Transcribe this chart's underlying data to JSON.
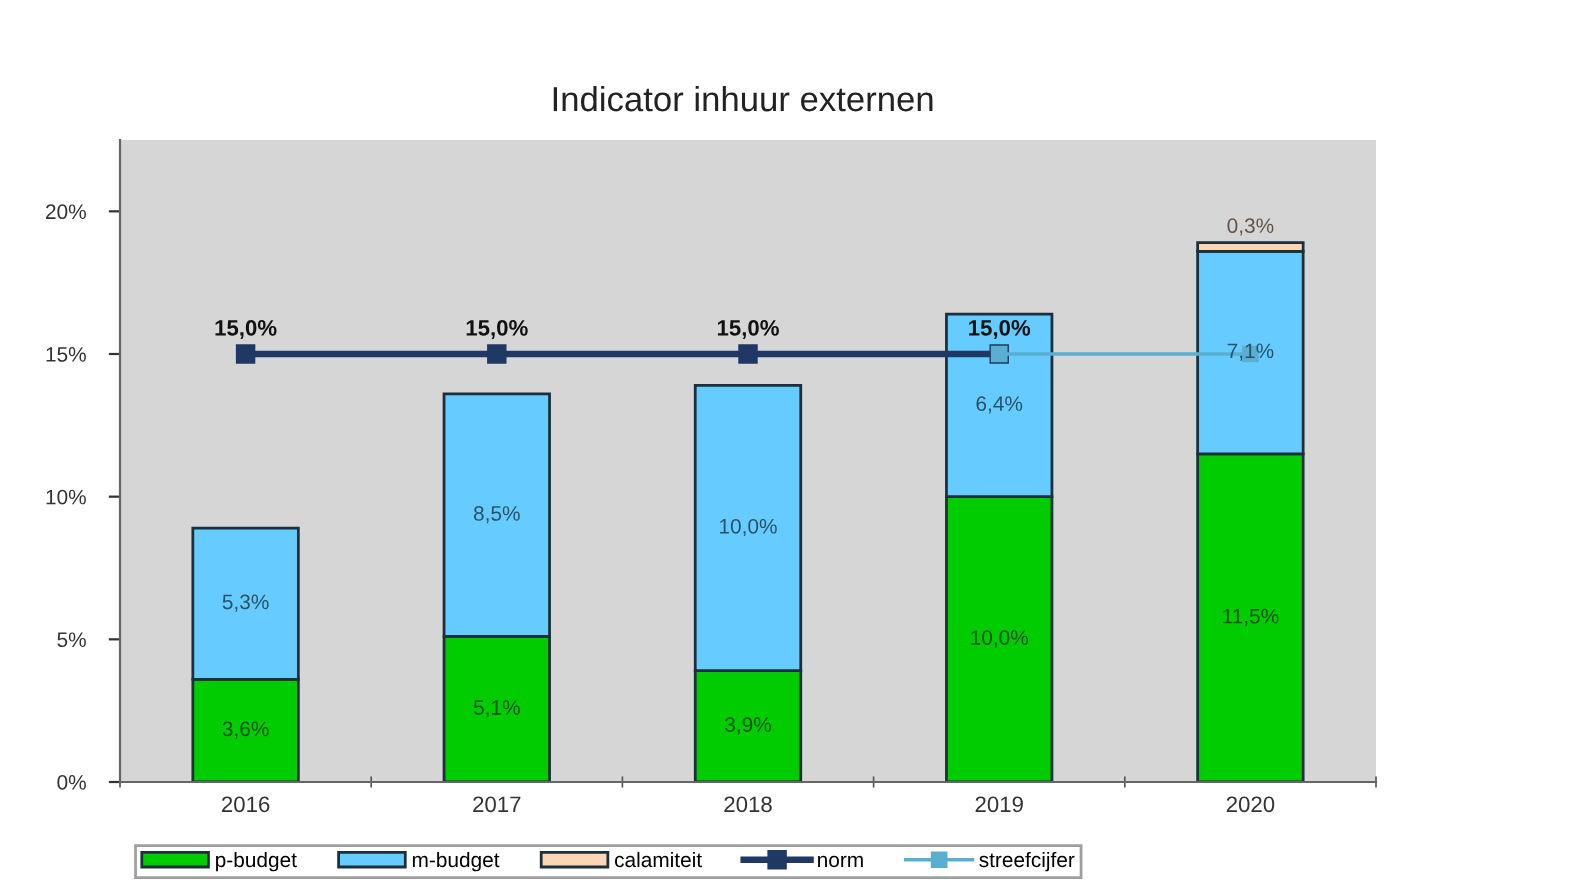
{
  "chart_data": {
    "type": "bar",
    "title": "Indicator inhuur externen",
    "stacked": true,
    "categories": [
      "2016",
      "2017",
      "2018",
      "2019",
      "2020"
    ],
    "series": [
      {
        "name": "p-budget",
        "color": "#00cc00",
        "values": [
          3.6,
          5.1,
          3.9,
          10.0,
          11.5
        ],
        "value_labels": [
          "3,6%",
          "5,1%",
          "3,9%",
          "10,0%",
          "11,5%"
        ]
      },
      {
        "name": "m-budget",
        "color": "#66ccff",
        "values": [
          5.3,
          8.5,
          10.0,
          6.4,
          7.1
        ],
        "value_labels": [
          "5,3%",
          "8,5%",
          "10,0%",
          "6,4%",
          "7,1%"
        ]
      },
      {
        "name": "calamiteit",
        "color": "#fcd5b4",
        "values": [
          null,
          null,
          null,
          null,
          0.3
        ],
        "value_labels": [
          null,
          null,
          null,
          null,
          "0,3%"
        ]
      },
      {
        "name": "norm",
        "type": "line",
        "color": "#1f3864",
        "marker": "square",
        "values": [
          15,
          15,
          15,
          15,
          null
        ],
        "value_labels": [
          "15,0%",
          "15,0%",
          "15,0%",
          "15,0%",
          null
        ]
      },
      {
        "name": "streefcijfer",
        "type": "line",
        "color": "#5aaed0",
        "marker": "square",
        "values": [
          null,
          null,
          null,
          15,
          15
        ]
      }
    ],
    "ylim": [
      0,
      22.5
    ],
    "yticks": [
      {
        "value": 0,
        "label": "0%"
      },
      {
        "value": 5,
        "label": "5%"
      },
      {
        "value": 10,
        "label": "10%"
      },
      {
        "value": 15,
        "label": "15%"
      },
      {
        "value": 20,
        "label": "20%"
      }
    ],
    "legend": "bottom"
  }
}
